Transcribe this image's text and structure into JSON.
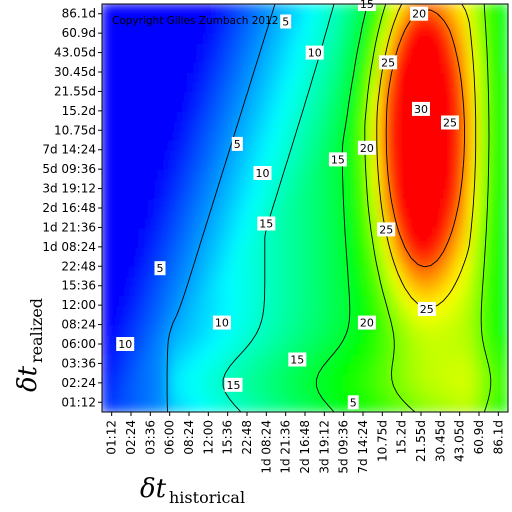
{
  "chart_data": {
    "type": "heatmap",
    "title": "",
    "copyright": "Copyright Gilles Zumbach 2012",
    "xlabel": {
      "main": "δt",
      "sub": "historical"
    },
    "ylabel": {
      "main": "δt",
      "sub": "realized"
    },
    "x_ticks": [
      "01:12",
      "02:24",
      "03:36",
      "06:00",
      "08:24",
      "12:00",
      "15:36",
      "22:48",
      "1d 08:24",
      "1d 21:36",
      "2d 16:48",
      "3d 19:12",
      "5d 09:36",
      "7d 14:24",
      "10.75d",
      "15.2d",
      "21.55d",
      "30.45d",
      "43.05d",
      "60.9d",
      "86.1d"
    ],
    "y_ticks": [
      "01:12",
      "02:24",
      "03:36",
      "06:00",
      "08:24",
      "12:00",
      "15:36",
      "22:48",
      "1d 08:24",
      "1d 21:36",
      "2d 16:48",
      "3d 19:12",
      "5d 09:36",
      "7d 14:24",
      "10.75d",
      "15.2d",
      "21.55d",
      "30.45d",
      "43.05d",
      "60.9d",
      "86.1d"
    ],
    "contour_levels": [
      5,
      10,
      15,
      20,
      25,
      30
    ],
    "contour_labels": [
      {
        "text": "5",
        "x": 9.0,
        "y": 19.6
      },
      {
        "text": "5",
        "x": 6.5,
        "y": 13.3
      },
      {
        "text": "5",
        "x": 2.5,
        "y": 6.9
      },
      {
        "text": "10",
        "x": 10.5,
        "y": 18.0
      },
      {
        "text": "10",
        "x": 7.8,
        "y": 11.8
      },
      {
        "text": "10",
        "x": 5.7,
        "y": 4.1
      },
      {
        "text": "10",
        "x": 0.7,
        "y": 3.0
      },
      {
        "text": "15",
        "x": 13.2,
        "y": 20.5
      },
      {
        "text": "15",
        "x": 11.7,
        "y": 12.5
      },
      {
        "text": "15",
        "x": 8.0,
        "y": 9.2
      },
      {
        "text": "15",
        "x": 6.3,
        "y": 0.9
      },
      {
        "text": "15",
        "x": 9.6,
        "y": 2.2
      },
      {
        "text": "5",
        "x": 12.5,
        "y": 0.0
      },
      {
        "text": "20",
        "x": 15.9,
        "y": 20.0
      },
      {
        "text": "20",
        "x": 13.2,
        "y": 13.1
      },
      {
        "text": "20",
        "x": 13.2,
        "y": 4.1
      },
      {
        "text": "25",
        "x": 14.3,
        "y": 17.5
      },
      {
        "text": "25",
        "x": 14.2,
        "y": 8.9
      },
      {
        "text": "25",
        "x": 16.3,
        "y": 4.8
      },
      {
        "text": "25",
        "x": 17.5,
        "y": 14.4
      },
      {
        "text": "30",
        "x": 16.0,
        "y": 15.1
      }
    ],
    "peak": {
      "x": 16.0,
      "y": 13.8,
      "value": 33
    },
    "colormap": [
      "#0000ff",
      "#00ffff",
      "#00ff00",
      "#ffff00",
      "#ff0000"
    ],
    "value_range": [
      0,
      33
    ],
    "grid": false,
    "legend": "none"
  }
}
